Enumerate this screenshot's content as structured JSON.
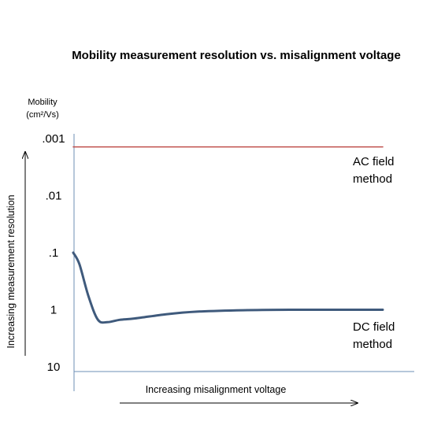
{
  "chart_data": {
    "type": "line",
    "title": "Mobility measurement resolution vs. misalignment voltage",
    "ylabel_lines": [
      "Mobility",
      "(cm²/Vs)"
    ],
    "y_direction_label": "Increasing measurement resolution",
    "xlabel": "Increasing misalignment voltage",
    "y_scale": "log-reversed",
    "ylim": [
      10,
      0.001
    ],
    "y_ticks": [
      {
        "value": 0.001,
        "label": ".001"
      },
      {
        "value": 0.01,
        "label": ".01"
      },
      {
        "value": 0.1,
        "label": ".1"
      },
      {
        "value": 1,
        "label": "1"
      },
      {
        "value": 10,
        "label": "10"
      }
    ],
    "xlim": [
      0,
      1
    ],
    "grid": false,
    "series": [
      {
        "name_lines": [
          "AC field",
          "method"
        ],
        "color": "#c0504d",
        "x": [
          0,
          1
        ],
        "y": [
          0.0014,
          0.0014
        ]
      },
      {
        "name_lines": [
          "DC field",
          "method"
        ],
        "color": "#3f5a7c",
        "x": [
          0,
          0.02,
          0.05,
          0.08,
          0.11,
          0.15,
          0.2,
          0.3,
          0.4,
          0.55,
          0.7,
          0.85,
          1
        ],
        "y": [
          0.1,
          0.16,
          0.6,
          1.5,
          1.65,
          1.5,
          1.42,
          1.2,
          1.08,
          1.02,
          1.0,
          1.0,
          1.0
        ]
      }
    ]
  }
}
